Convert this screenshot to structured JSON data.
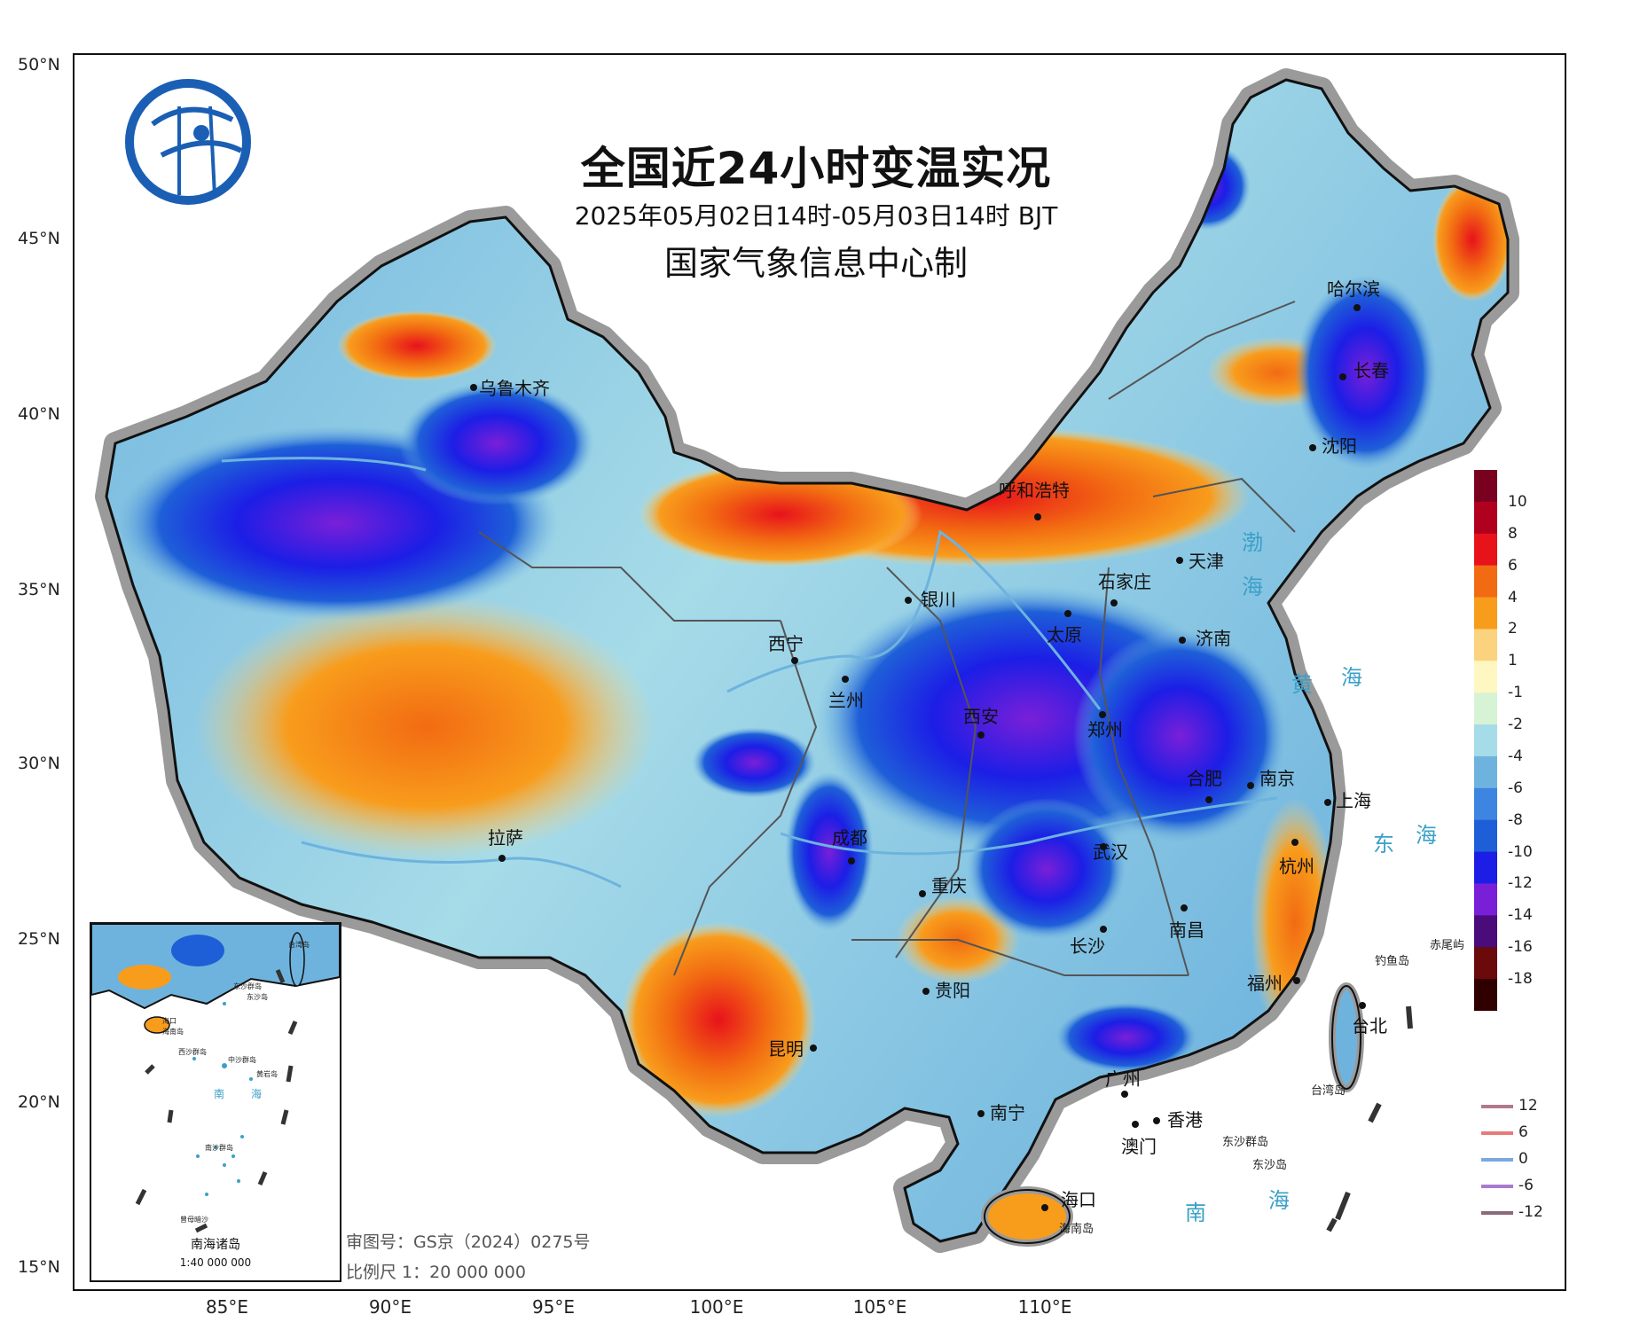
{
  "title": "全国近24小时变温实况",
  "subtitle": "2025年05月02日14时-05月03日14时 BJT",
  "maker": "国家气象信息中心制",
  "lat_labels": [
    "50°N",
    "45°N",
    "40°N",
    "35°N",
    "30°N",
    "25°N",
    "20°N",
    "15°N"
  ],
  "lon_labels": [
    "85°E",
    "90°E",
    "95°E",
    "100°E",
    "105°E",
    "110°E"
  ],
  "cities": [
    "乌鲁木齐",
    "哈尔滨",
    "长春",
    "沈阳",
    "呼和浩特",
    "天津",
    "石家庄",
    "银川",
    "太原",
    "济南",
    "西宁",
    "兰州",
    "西安",
    "郑州",
    "合肥",
    "南京",
    "上海",
    "拉萨",
    "成都",
    "武汉",
    "杭州",
    "重庆",
    "长沙",
    "南昌",
    "福州",
    "台北",
    "贵阳",
    "昆明",
    "广州",
    "南宁",
    "香港",
    "澳门",
    "海口"
  ],
  "seas": [
    "渤",
    "海",
    "黄",
    "海",
    "东",
    "海",
    "南",
    "海"
  ],
  "islands": [
    "钓鱼岛",
    "赤尾屿",
    "台湾岛",
    "东沙群岛",
    "东沙岛",
    "海南岛"
  ],
  "inset": {
    "title": "南海诸岛",
    "scale": "1:40 000 000",
    "labels": [
      "海口",
      "海南岛",
      "东沙群岛",
      "东沙岛",
      "西沙群岛",
      "中沙群岛",
      "黄岩岛",
      "南",
      "海",
      "南沙群岛",
      "曾母暗沙",
      "台湾岛"
    ]
  },
  "footer": {
    "review": "审图号：GS京（2024）0275号",
    "scale": "比例尺 1：20 000 000"
  },
  "colorbar": {
    "ticks": [
      "10",
      "8",
      "6",
      "4",
      "2",
      "1",
      "-1",
      "-2",
      "-4",
      "-6",
      "-8",
      "-10",
      "-12",
      "-14",
      "-16",
      "-18"
    ],
    "colors": [
      "#7a0020",
      "#b0001e",
      "#e8121b",
      "#f26b12",
      "#f89c1c",
      "#fbd37e",
      "#fff7c2",
      "#d6f3d6",
      "#a6dbe8",
      "#6eb3de",
      "#3d85e0",
      "#1e5fd8",
      "#1c1ee6",
      "#7a1fd8",
      "#4a0c7a",
      "#6a0a0a",
      "#300000"
    ]
  },
  "legend": {
    "items": [
      {
        "label": "12",
        "color": "#b07a8a"
      },
      {
        "label": "6",
        "color": "#e87a7a"
      },
      {
        "label": "0",
        "color": "#7aa8e0"
      },
      {
        "label": "-6",
        "color": "#a87ad0"
      },
      {
        "label": "-12",
        "color": "#8a6a7a"
      }
    ]
  }
}
